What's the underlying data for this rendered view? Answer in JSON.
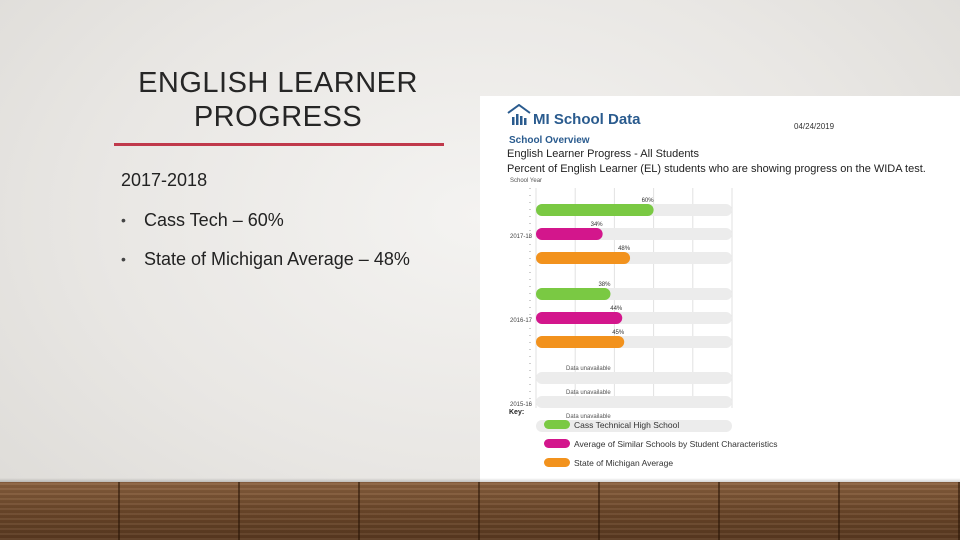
{
  "slide": {
    "title": "ENGLISH LEARNER PROGRESS",
    "subtitle": "2017-2018",
    "bullets": [
      {
        "marker": "•",
        "text": "Cass Tech – 60%"
      },
      {
        "marker": "•",
        "text": "State of Michigan Average – 48%"
      }
    ]
  },
  "report": {
    "brand": "MI School Data",
    "date": "04/24/2019",
    "section": "School Overview",
    "heading": "English Learner Progress - All Students",
    "subheading": "Percent of English Learner (EL) students who are showing progress on the WIDA test.",
    "axis_label": "School Year",
    "key_label": "Key:",
    "unavailable_text": "Data unavailable"
  },
  "chart_data": {
    "type": "bar",
    "orientation": "horizontal",
    "categories": [
      "2017-18",
      "2016-17",
      "2015-16"
    ],
    "series": [
      {
        "name": "Cass Technical High School",
        "color": "#7ac943",
        "values": [
          60,
          38,
          null
        ],
        "labels": [
          "60%",
          "38%",
          "Data unavailable"
        ]
      },
      {
        "name": "Average of Similar Schools by Student Characteristics",
        "color": "#d3168c",
        "values": [
          34,
          44,
          null
        ],
        "labels": [
          "34%",
          "44%",
          "Data unavailable"
        ]
      },
      {
        "name": "State of Michigan Average",
        "color": "#f2921d",
        "values": [
          48,
          45,
          null
        ],
        "labels": [
          "48%",
          "45%",
          "Data unavailable"
        ]
      }
    ],
    "xlim": [
      0,
      100
    ],
    "ylabel": "School Year",
    "grid": true,
    "legend_position": "bottom-left"
  }
}
